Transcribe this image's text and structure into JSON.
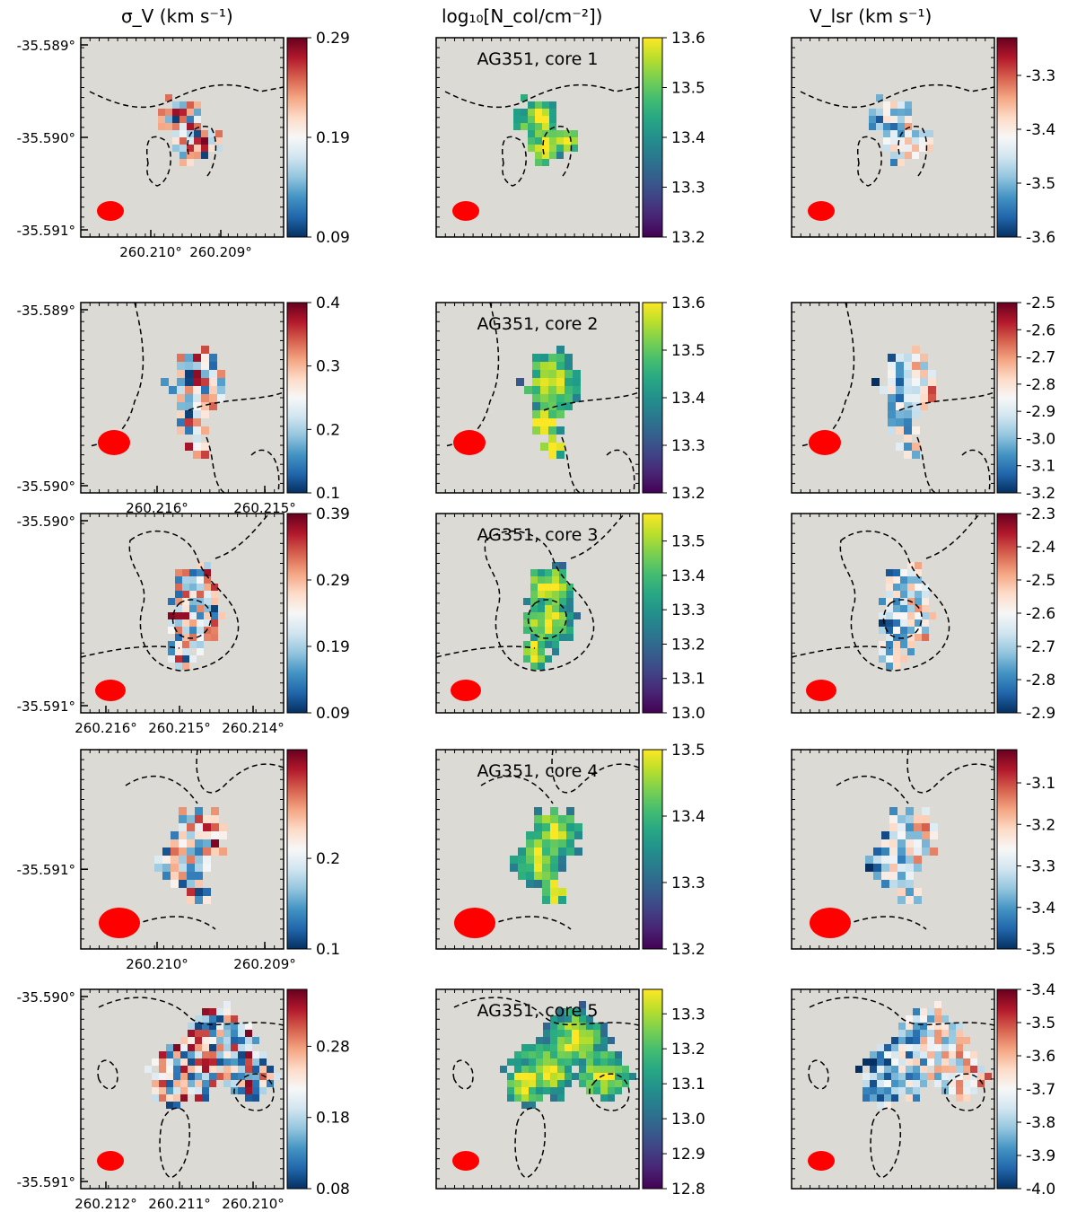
{
  "chart_data": {
    "type": "heatmap",
    "column_titles": [
      "σ_V (km s⁻¹)",
      "log₁₀[N_col/cm⁻²])",
      "V_lsr (km s⁻¹)"
    ],
    "colormaps": [
      "RdBu_r",
      "viridis",
      "RdBu_r"
    ],
    "beam_color": "#ff0000",
    "background_color": "#dcdad5",
    "rows": [
      {
        "label": "AG351, core 1",
        "y_ticks": [
          "-35.589°",
          "-35.590°",
          "-35.591°"
        ],
        "x_ticks": [
          "260.210°",
          "260.209°"
        ],
        "panels": [
          {
            "cbar_ticks": [
              "0.29",
              "0.19",
              "0.09"
            ],
            "vmin": 0.09,
            "vmax": 0.29
          },
          {
            "cbar_ticks": [
              "13.6",
              "13.5",
              "13.4",
              "13.3",
              "13.2"
            ],
            "vmin": 13.2,
            "vmax": 13.6
          },
          {
            "cbar_ticks": [
              "-3.3",
              "-3.4",
              "-3.5",
              "-3.6"
            ],
            "vmin": -3.6,
            "vmax": -3.23
          }
        ]
      },
      {
        "label": "AG351, core 2",
        "y_ticks": [
          "-35.589°",
          "-35.590°"
        ],
        "x_ticks": [
          "260.216°",
          "260.215°"
        ],
        "panels": [
          {
            "cbar_ticks": [
              "0.4",
              "0.3",
              "0.2",
              "0.1"
            ],
            "vmin": 0.1,
            "vmax": 0.4
          },
          {
            "cbar_ticks": [
              "13.6",
              "13.5",
              "13.4",
              "13.3",
              "13.2"
            ],
            "vmin": 13.2,
            "vmax": 13.6
          },
          {
            "cbar_ticks": [
              "-2.5",
              "-2.6",
              "-2.7",
              "-2.8",
              "-2.9",
              "-3.0",
              "-3.1",
              "-3.2"
            ],
            "vmin": -3.2,
            "vmax": -2.5
          }
        ]
      },
      {
        "label": "AG351, core 3",
        "y_ticks": [
          "-35.590°",
          "-35.591°"
        ],
        "x_ticks": [
          "260.216°",
          "260.215°",
          "260.214°"
        ],
        "panels": [
          {
            "cbar_ticks": [
              "0.39",
              "0.29",
              "0.19",
              "0.09"
            ],
            "vmin": 0.09,
            "vmax": 0.39
          },
          {
            "cbar_ticks": [
              "13.5",
              "13.4",
              "13.3",
              "13.2",
              "13.1",
              "13.0"
            ],
            "vmin": 13.0,
            "vmax": 13.58
          },
          {
            "cbar_ticks": [
              "-2.3",
              "-2.4",
              "-2.5",
              "-2.6",
              "-2.7",
              "-2.8",
              "-2.9"
            ],
            "vmin": -2.9,
            "vmax": -2.3
          }
        ]
      },
      {
        "label": "AG351, core 4",
        "y_ticks": [
          "-35.591°"
        ],
        "x_ticks": [
          "260.210°",
          "260.209°"
        ],
        "panels": [
          {
            "cbar_ticks": [
              "0.2",
              "0.1"
            ],
            "vmin": 0.1,
            "vmax": 0.32
          },
          {
            "cbar_ticks": [
              "13.5",
              "13.4",
              "13.3",
              "13.2"
            ],
            "vmin": 13.2,
            "vmax": 13.5
          },
          {
            "cbar_ticks": [
              "-3.1",
              "-3.2",
              "-3.3",
              "-3.4",
              "-3.5"
            ],
            "vmin": -3.5,
            "vmax": -3.02
          }
        ]
      },
      {
        "label": "AG351, core 5",
        "y_ticks": [
          "-35.590°",
          "-35.591°"
        ],
        "x_ticks": [
          "260.212°",
          "260.211°",
          "260.210°"
        ],
        "panels": [
          {
            "cbar_ticks": [
              "0.28",
              "0.18",
              "0.08"
            ],
            "vmin": 0.08,
            "vmax": 0.36
          },
          {
            "cbar_ticks": [
              "13.3",
              "13.2",
              "13.1",
              "13.0",
              "12.9",
              "12.8"
            ],
            "vmin": 12.8,
            "vmax": 13.37
          },
          {
            "cbar_ticks": [
              "-3.4",
              "-3.5",
              "-3.6",
              "-3.7",
              "-3.8",
              "-3.9",
              "-4.0"
            ],
            "vmin": -4.0,
            "vmax": -3.4
          }
        ]
      }
    ]
  }
}
